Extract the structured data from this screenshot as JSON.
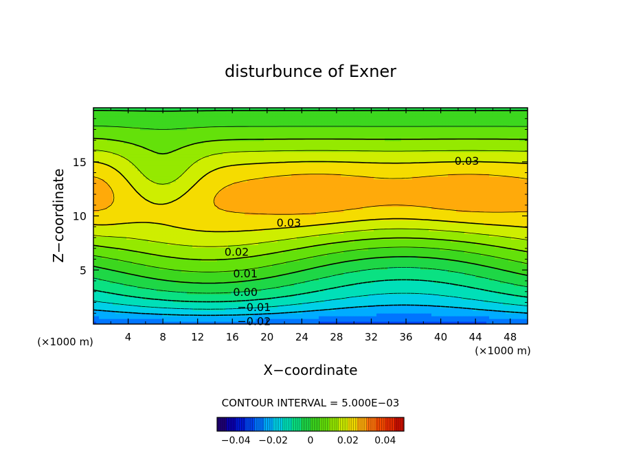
{
  "chart_data": {
    "type": "heatmap",
    "title": "disturbunce of Exner",
    "xlabel": "X−coordinate",
    "ylabel": "Z−coordinate",
    "x_unit_left": "(×1000 m)",
    "x_unit_right": "(×1000 m)",
    "xlim": [
      0,
      50
    ],
    "ylim": [
      0,
      20
    ],
    "xticks": [
      4,
      8,
      12,
      16,
      20,
      24,
      28,
      32,
      36,
      40,
      44,
      48
    ],
    "yticks": [
      5,
      10,
      15
    ],
    "contour_interval_text": "CONTOUR INTERVAL = 5.000E−03",
    "contour_levels": [
      -0.02,
      -0.015,
      -0.01,
      -0.005,
      0,
      0.005,
      0.01,
      0.015,
      0.02,
      0.025,
      0.03
    ],
    "contour_labels": [
      {
        "text": "0.03",
        "x": 43,
        "y": 15.1
      },
      {
        "text": "0.03",
        "x": 22.5,
        "y": 9.4
      },
      {
        "text": "0.02",
        "x": 16.5,
        "y": 6.7
      },
      {
        "text": "0.01",
        "x": 17.5,
        "y": 4.7
      },
      {
        "text": "0.00",
        "x": 17.5,
        "y": 3.0
      },
      {
        "text": "−0.01",
        "x": 18.5,
        "y": 1.6
      },
      {
        "text": "−0.02",
        "x": 18.5,
        "y": 0.3
      }
    ],
    "field_description": {
      "min": -0.024,
      "max": 0.036,
      "max_region": {
        "x": [
          18,
          50
        ],
        "z": [
          10,
          14
        ]
      },
      "saddle": {
        "x": 8,
        "z": 13.5
      },
      "min_region": {
        "x": [
          0,
          16
        ],
        "z": [
          0,
          1
        ]
      }
    },
    "colorbar": {
      "range": [
        -0.05,
        0.05
      ],
      "tick_labels": [
        "−0.04",
        "−0.02",
        "0",
        "0.02",
        "0.04"
      ],
      "tick_values": [
        -0.04,
        -0.02,
        0,
        0.02,
        0.04
      ]
    }
  }
}
